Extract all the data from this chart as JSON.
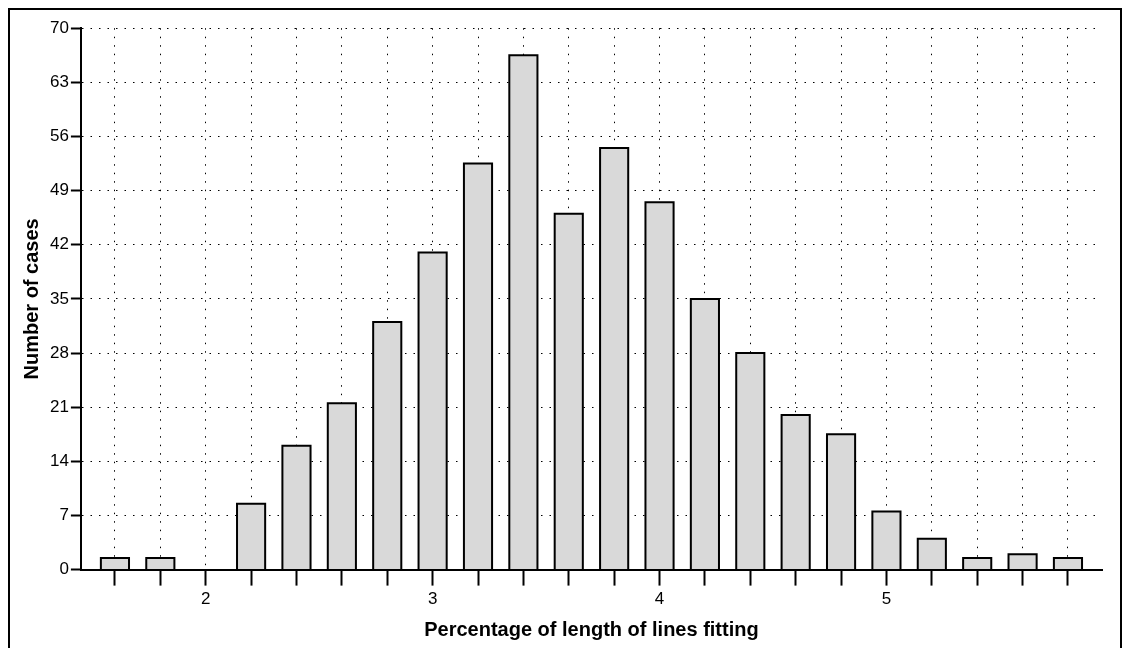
{
  "chart_data": {
    "type": "histogram",
    "xlabel": "Percentage of length of lines fitting",
    "ylabel": "Number of cases",
    "bins": [
      1.5,
      1.7,
      1.9,
      2.1,
      2.3,
      2.5,
      2.7,
      2.9,
      3.1,
      3.3,
      3.5,
      3.7,
      3.9,
      4.1,
      4.3,
      4.5,
      4.7,
      4.9,
      5.1,
      5.3,
      5.5,
      5.7,
      5.9
    ],
    "values": [
      1.5,
      1.5,
      0,
      8.5,
      16,
      21.5,
      32,
      41,
      52.5,
      66.5,
      46,
      54.5,
      47.5,
      35,
      28,
      20,
      17.5,
      7.5,
      4,
      1.5,
      2,
      1.5
    ],
    "color": "#d9d9d9",
    "xlim": [
      1.45,
      5.95
    ],
    "xticks": [
      {
        "value": 1.6,
        "label": null
      },
      {
        "value": 1.8,
        "label": null
      },
      2,
      {
        "value": 2.2,
        "label": null
      },
      {
        "value": 2.4,
        "label": null
      },
      {
        "value": 2.6,
        "label": null
      },
      {
        "value": 2.8,
        "label": null
      },
      3,
      {
        "value": 3.2,
        "label": null
      },
      {
        "value": 3.4,
        "label": null
      },
      {
        "value": 3.6,
        "label": null
      },
      {
        "value": 3.8,
        "label": null
      },
      4,
      {
        "value": 4.2,
        "label": null
      },
      {
        "value": 4.4,
        "label": null
      },
      {
        "value": 4.6,
        "label": null
      },
      {
        "value": 4.8,
        "label": null
      },
      5,
      {
        "value": 5.2,
        "label": null
      },
      {
        "value": 5.4,
        "label": null
      },
      {
        "value": 5.6,
        "label": null
      },
      {
        "value": 5.8,
        "label": null
      }
    ],
    "ylim": [
      0,
      70
    ],
    "yticks": [
      0,
      7,
      14,
      21,
      28,
      35,
      42,
      49,
      56,
      63,
      70
    ],
    "grid": true
  }
}
